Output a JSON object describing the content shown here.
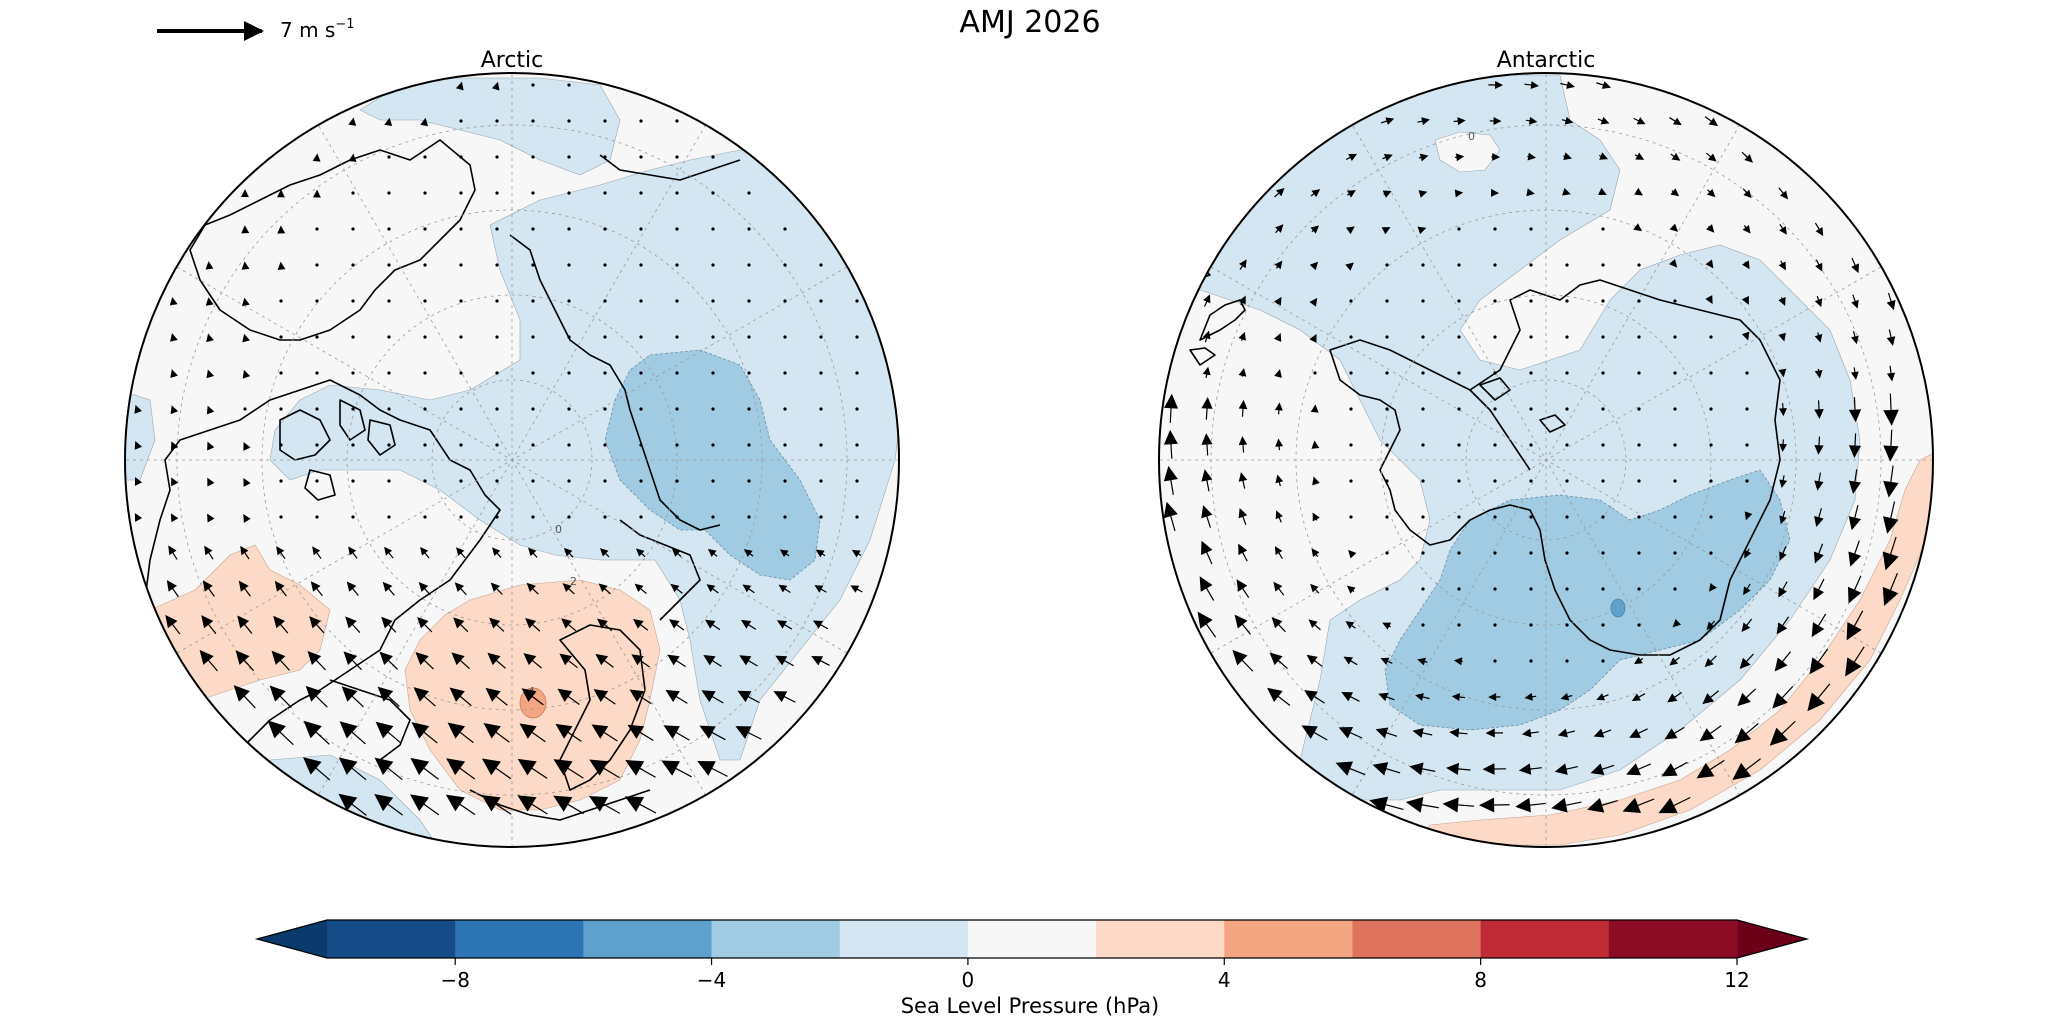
{
  "figure": {
    "title": "AMJ 2026",
    "quiver_key_label": "7 m s",
    "quiver_key_exponent": "−1"
  },
  "panels": [
    {
      "title": "Arctic"
    },
    {
      "title": "Antarctic"
    }
  ],
  "colorbar": {
    "label": "Sea Level Pressure (hPa)",
    "tick_labels": [
      "−8",
      "−4",
      "0",
      "4",
      "8",
      "12"
    ],
    "colors": [
      "#0b3a6f",
      "#154b87",
      "#2d74b5",
      "#5ea1cc",
      "#a0cbe2",
      "#d3e6f1",
      "#f7f7f7",
      "#fcdac7",
      "#f4a683",
      "#de735d",
      "#bf2b34",
      "#8c0c26",
      "#6b0018"
    ]
  },
  "chart_data": {
    "type": "heatmap",
    "variable": "Sea Level Pressure (hPa)",
    "levels": [
      -10,
      -8,
      -6,
      -4,
      -2,
      0,
      2,
      4,
      6,
      8,
      10,
      12
    ],
    "extend": "both",
    "vector_reference": {
      "magnitude": 7,
      "units": "m s−1"
    },
    "maps": [
      {
        "title": "Arctic",
        "contour_labels": [
          "0",
          "2",
          "4"
        ]
      },
      {
        "title": "Antarctic",
        "contour_labels": [
          "0",
          "4"
        ]
      }
    ]
  }
}
